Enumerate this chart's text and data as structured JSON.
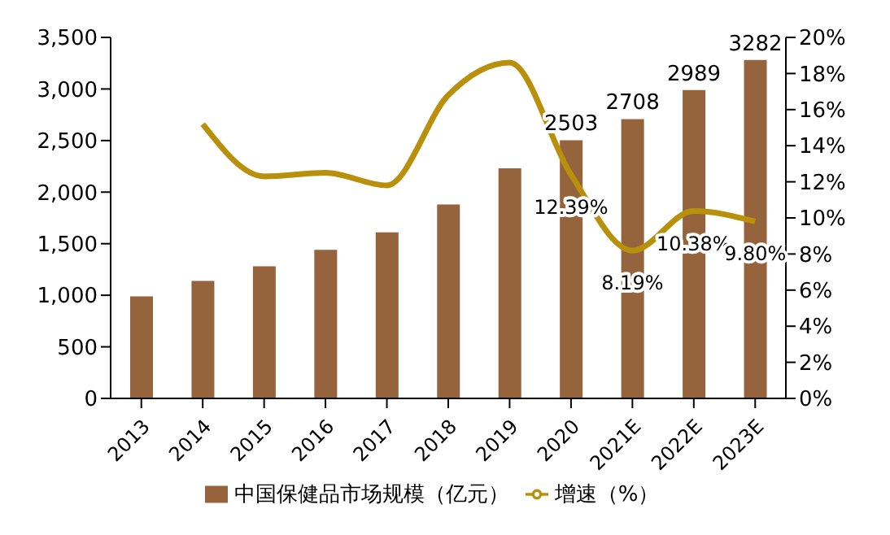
{
  "chart_data": {
    "type": "bar",
    "categories": [
      "2013",
      "2014",
      "2015",
      "2016",
      "2017",
      "2018",
      "2019",
      "2020",
      "2021E",
      "2022E",
      "2023E"
    ],
    "series": [
      {
        "name": "中国保健品市场规模（亿元）",
        "color": "#96643c",
        "values": [
          990,
          1140,
          1280,
          1440,
          1610,
          1880,
          2230,
          2503,
          2708,
          2989,
          3282
        ],
        "value_labels": [
          null,
          null,
          null,
          null,
          null,
          null,
          null,
          "2503",
          "2708",
          "2989",
          "3282"
        ]
      },
      {
        "name": "增速（%）",
        "type": "line",
        "axis": "y2",
        "color": "#b8900c",
        "values": [
          null,
          15.2,
          12.3,
          12.5,
          11.8,
          16.8,
          18.6,
          12.39,
          8.19,
          10.38,
          9.8
        ],
        "value_labels": [
          null,
          null,
          null,
          null,
          null,
          null,
          null,
          "12.39%",
          "8.19%",
          "10.38%",
          "9.80%"
        ]
      }
    ],
    "ylim": [
      0,
      3500
    ],
    "yticks": [
      0,
      {
        "value": 500,
        "label": "500"
      },
      {
        "value": 1000,
        "label": "1,000"
      },
      {
        "value": 1500,
        "label": "1,500"
      },
      {
        "value": 2000,
        "label": "2,000"
      },
      {
        "value": 2500,
        "label": "2,500"
      },
      {
        "value": 3000,
        "label": "3,000"
      },
      {
        "value": 3500,
        "label": "3,500"
      }
    ],
    "y2lim": [
      0,
      20
    ],
    "y2ticks": [
      {
        "value": 0,
        "label": "0%"
      },
      {
        "value": 2,
        "label": "2%"
      },
      {
        "value": 4,
        "label": "4%"
      },
      {
        "value": 6,
        "label": "6%"
      },
      {
        "value": 8,
        "label": "8%"
      },
      {
        "value": 10,
        "label": "10%"
      },
      {
        "value": 12,
        "label": "12%"
      },
      {
        "value": 14,
        "label": "14%"
      },
      {
        "value": 16,
        "label": "16%"
      },
      {
        "value": 18,
        "label": "18%"
      },
      {
        "value": 20,
        "label": "20%"
      }
    ],
    "grid": false,
    "legend": "bottom",
    "marker": "none",
    "line_style": "solid"
  }
}
